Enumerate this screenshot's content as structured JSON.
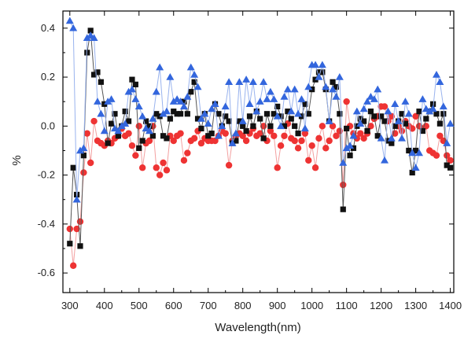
{
  "chart_data": {
    "type": "scatter",
    "xlabel": "Wavelength(nm)",
    "ylabel": "%",
    "xlim": [
      280,
      1410
    ],
    "ylim": [
      -0.68,
      0.47
    ],
    "x_ticks": [
      300,
      400,
      500,
      600,
      700,
      800,
      900,
      1000,
      1100,
      1200,
      1300,
      1400
    ],
    "y_ticks": [
      -0.6,
      -0.4,
      -0.2,
      0.0,
      0.2,
      0.4
    ],
    "x_tick_labels": [
      "300",
      "400",
      "500",
      "600",
      "700",
      "800",
      "900",
      "1000",
      "1100",
      "1200",
      "1300",
      "1400"
    ],
    "y_tick_labels": [
      "-0.6",
      "-0.4",
      "-0.2",
      "0.0",
      "0.2",
      "0.4"
    ],
    "grid": false,
    "series": [
      {
        "marker": "square",
        "color": "#111111",
        "line_color": "#555555",
        "x": [
          300,
          310,
          320,
          330,
          340,
          350,
          360,
          370,
          380,
          390,
          400,
          410,
          420,
          430,
          440,
          450,
          460,
          470,
          480,
          490,
          500,
          510,
          520,
          530,
          540,
          550,
          560,
          570,
          580,
          590,
          600,
          610,
          620,
          630,
          640,
          650,
          660,
          670,
          680,
          690,
          700,
          710,
          720,
          730,
          740,
          750,
          760,
          770,
          780,
          790,
          800,
          810,
          820,
          830,
          840,
          850,
          860,
          870,
          880,
          890,
          900,
          910,
          920,
          930,
          940,
          950,
          960,
          970,
          980,
          990,
          1000,
          1010,
          1020,
          1030,
          1040,
          1050,
          1060,
          1070,
          1080,
          1090,
          1100,
          1110,
          1120,
          1130,
          1140,
          1150,
          1160,
          1170,
          1180,
          1190,
          1200,
          1210,
          1220,
          1230,
          1240,
          1250,
          1260,
          1270,
          1280,
          1290,
          1300,
          1310,
          1320,
          1330,
          1340,
          1350,
          1360,
          1370,
          1380,
          1390,
          1400
        ],
        "y": [
          -0.48,
          -0.17,
          -0.28,
          -0.49,
          -0.12,
          0.3,
          0.39,
          0.21,
          0.22,
          0.18,
          0.09,
          -0.07,
          0.01,
          0.05,
          -0.04,
          0.0,
          0.06,
          0.02,
          0.19,
          0.17,
          -0.09,
          -0.06,
          0.02,
          0.0,
          -0.04,
          0.05,
          0.04,
          -0.04,
          -0.05,
          0.03,
          0.06,
          0.05,
          0.05,
          0.1,
          0.05,
          0.14,
          0.18,
          0.03,
          -0.01,
          0.05,
          -0.04,
          -0.03,
          0.09,
          0.05,
          0.0,
          0.04,
          0.02,
          -0.07,
          -0.06,
          0.02,
          0.0,
          -0.02,
          0.04,
          0.0,
          0.06,
          0.03,
          -0.05,
          0.05,
          0.0,
          0.05,
          0.08,
          0.04,
          0.0,
          0.06,
          0.03,
          0.0,
          -0.03,
          0.04,
          0.09,
          0.05,
          0.15,
          0.19,
          0.22,
          0.22,
          0.15,
          0.02,
          0.18,
          0.16,
          0.05,
          -0.34,
          -0.01,
          -0.12,
          -0.09,
          0.0,
          0.03,
          0.02,
          -0.02,
          0.06,
          0.04,
          -0.04,
          0.04,
          0.02,
          -0.06,
          -0.07,
          0.0,
          0.02,
          0.05,
          0.01,
          -0.1,
          -0.19,
          -0.1,
          0.06,
          -0.02,
          0.03,
          0.06,
          0.09,
          0.05,
          0.01,
          0.05,
          -0.16,
          -0.17
        ]
      },
      {
        "marker": "circle",
        "color": "#ee3333",
        "line_color": "#f3a0a0",
        "x": [
          300,
          310,
          320,
          330,
          340,
          350,
          360,
          370,
          380,
          390,
          400,
          410,
          420,
          430,
          440,
          450,
          460,
          470,
          480,
          490,
          500,
          510,
          520,
          530,
          540,
          550,
          560,
          570,
          580,
          590,
          600,
          610,
          620,
          630,
          640,
          650,
          660,
          670,
          680,
          690,
          700,
          710,
          720,
          730,
          740,
          750,
          760,
          770,
          780,
          790,
          800,
          810,
          820,
          830,
          840,
          850,
          860,
          870,
          880,
          890,
          900,
          910,
          920,
          930,
          940,
          950,
          960,
          970,
          980,
          990,
          1000,
          1010,
          1020,
          1030,
          1040,
          1050,
          1060,
          1070,
          1080,
          1090,
          1100,
          1110,
          1120,
          1130,
          1140,
          1150,
          1160,
          1170,
          1180,
          1190,
          1200,
          1210,
          1220,
          1230,
          1240,
          1250,
          1260,
          1270,
          1280,
          1290,
          1300,
          1310,
          1320,
          1330,
          1340,
          1350,
          1360,
          1370,
          1380,
          1390,
          1400
        ],
        "y": [
          -0.42,
          -0.57,
          -0.42,
          -0.39,
          -0.19,
          -0.03,
          -0.15,
          0.02,
          -0.06,
          -0.07,
          -0.08,
          -0.06,
          -0.07,
          -0.05,
          -0.04,
          -0.01,
          -0.04,
          -0.03,
          -0.08,
          -0.12,
          0.0,
          -0.17,
          -0.07,
          -0.06,
          0.0,
          -0.17,
          -0.2,
          -0.15,
          -0.18,
          -0.04,
          -0.06,
          -0.04,
          -0.03,
          -0.14,
          -0.11,
          -0.06,
          -0.05,
          -0.02,
          -0.07,
          -0.05,
          -0.06,
          -0.06,
          -0.06,
          -0.04,
          -0.02,
          -0.03,
          -0.16,
          -0.06,
          -0.04,
          -0.03,
          -0.04,
          -0.06,
          -0.03,
          -0.01,
          -0.04,
          -0.03,
          0.0,
          -0.06,
          -0.02,
          -0.04,
          -0.17,
          -0.08,
          -0.04,
          0.01,
          -0.05,
          -0.06,
          -0.09,
          -0.06,
          -0.03,
          -0.14,
          -0.08,
          -0.17,
          -0.05,
          0.0,
          -0.09,
          -0.06,
          0.0,
          -0.04,
          -0.02,
          -0.24,
          0.1,
          0.0,
          -0.03,
          -0.05,
          -0.03,
          -0.05,
          -0.03,
          0.0,
          0.03,
          0.04,
          0.08,
          0.08,
          0.02,
          0.04,
          -0.03,
          0.0,
          -0.02,
          0.02,
          0.0,
          -0.01,
          0.04,
          0.0,
          -0.01,
          0.0,
          -0.1,
          -0.11,
          -0.12,
          -0.04,
          -0.06,
          -0.12,
          -0.14
        ]
      },
      {
        "marker": "triangle",
        "color": "#3366dd",
        "line_color": "#99b3ee",
        "x": [
          300,
          310,
          320,
          330,
          340,
          350,
          360,
          370,
          380,
          390,
          400,
          410,
          420,
          430,
          440,
          450,
          460,
          470,
          480,
          490,
          500,
          510,
          520,
          530,
          540,
          550,
          560,
          570,
          580,
          590,
          600,
          610,
          620,
          630,
          640,
          650,
          660,
          670,
          680,
          690,
          700,
          710,
          720,
          730,
          740,
          750,
          760,
          770,
          780,
          790,
          800,
          810,
          820,
          830,
          840,
          850,
          860,
          870,
          880,
          890,
          900,
          910,
          920,
          930,
          940,
          950,
          960,
          970,
          980,
          990,
          1000,
          1010,
          1020,
          1030,
          1040,
          1050,
          1060,
          1070,
          1080,
          1090,
          1100,
          1110,
          1120,
          1130,
          1140,
          1150,
          1160,
          1170,
          1180,
          1190,
          1200,
          1210,
          1220,
          1230,
          1240,
          1250,
          1260,
          1270,
          1280,
          1290,
          1300,
          1310,
          1320,
          1330,
          1340,
          1350,
          1360,
          1370,
          1380,
          1390,
          1400
        ],
        "y": [
          0.43,
          0.4,
          -0.3,
          -0.1,
          -0.09,
          0.36,
          0.37,
          0.36,
          0.1,
          0.05,
          -0.02,
          0.1,
          0.11,
          -0.01,
          -0.02,
          0.0,
          0.01,
          0.14,
          0.15,
          0.11,
          0.08,
          0.04,
          -0.01,
          -0.02,
          0.03,
          0.14,
          0.24,
          0.05,
          0.06,
          0.2,
          0.1,
          0.11,
          0.1,
          0.08,
          0.12,
          0.24,
          0.21,
          0.16,
          0.03,
          0.05,
          0.01,
          0.07,
          0.09,
          -0.04,
          0.0,
          0.08,
          0.18,
          -0.07,
          -0.03,
          0.18,
          0.02,
          0.19,
          0.09,
          0.18,
          0.06,
          0.1,
          0.18,
          0.11,
          0.14,
          0.11,
          0.04,
          0.0,
          0.12,
          0.15,
          0.06,
          0.15,
          0.05,
          0.11,
          -0.01,
          0.16,
          0.25,
          0.25,
          0.2,
          0.25,
          0.16,
          0.02,
          0.15,
          0.12,
          0.2,
          -0.15,
          -0.09,
          -0.08,
          -0.04,
          0.06,
          0.01,
          0.07,
          0.1,
          0.12,
          0.11,
          0.15,
          -0.05,
          -0.14,
          0.06,
          -0.05,
          0.09,
          0.02,
          -0.05,
          0.1,
          0.05,
          -0.11,
          -0.17,
          -0.11,
          0.11,
          0.07,
          0.06,
          0.07,
          0.21,
          0.18,
          0.08,
          -0.07,
          0.01
        ]
      }
    ]
  }
}
